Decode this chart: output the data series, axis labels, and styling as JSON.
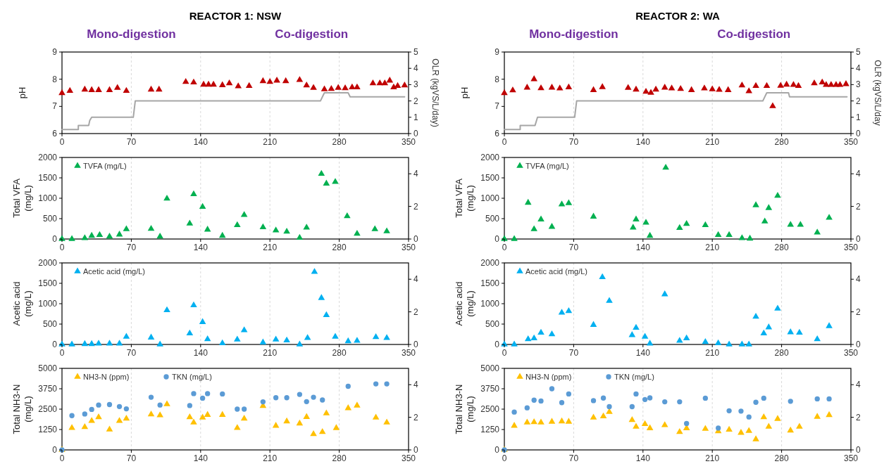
{
  "chart_data": [
    {
      "type": "scatter",
      "title": "REACTOR 1: NSW",
      "annotations": [
        "Mono-digestion",
        "Co-digestion"
      ],
      "ylabel": "pH",
      "y2label": "OLR (kgVS/L/day)",
      "xlim": [
        0,
        350
      ],
      "xticks": [
        0,
        70,
        140,
        210,
        280,
        350
      ],
      "ylim": [
        6,
        9
      ],
      "yticks": [
        6,
        7,
        8,
        9
      ],
      "y2lim": [
        0,
        5
      ],
      "y2ticks": [
        0,
        1,
        2,
        3,
        4,
        5
      ],
      "grid": "x",
      "series": [
        {
          "marker": "triangle",
          "color": "#c00000",
          "x": [
            0,
            8,
            23,
            30,
            37,
            48,
            56,
            65,
            90,
            98,
            125,
            133,
            143,
            148,
            153,
            162,
            169,
            178,
            189,
            203,
            210,
            217,
            226,
            240,
            247,
            254,
            265,
            272,
            279,
            286,
            293,
            298,
            314,
            321,
            326,
            331,
            335,
            339,
            346
          ],
          "values": [
            7.49,
            7.57,
            7.62,
            7.6,
            7.6,
            7.6,
            7.68,
            7.57,
            7.62,
            7.62,
            7.9,
            7.88,
            7.8,
            7.8,
            7.8,
            7.78,
            7.85,
            7.74,
            7.75,
            7.93,
            7.9,
            7.95,
            7.93,
            7.97,
            7.77,
            7.68,
            7.63,
            7.64,
            7.68,
            7.67,
            7.7,
            7.7,
            7.85,
            7.85,
            7.85,
            7.95,
            7.7,
            7.75,
            7.77
          ]
        },
        {
          "type": "line",
          "axis": "y2",
          "color": "#a6a6a6",
          "x": [
            0,
            16.5,
            16.5,
            27,
            28,
            30,
            72,
            74,
            261,
            265,
            289,
            291,
            346
          ],
          "values": [
            0.25,
            0.25,
            0.5,
            0.5,
            0.8,
            1,
            1,
            2,
            2,
            2.5,
            2.5,
            2.25,
            2.25
          ]
        }
      ]
    },
    {
      "type": "scatter",
      "ylabel": "Total VFA (mg/L)",
      "xlim": [
        0,
        350
      ],
      "xticks": [
        0,
        70,
        140,
        210,
        280,
        350
      ],
      "ylim": [
        0,
        2000
      ],
      "yticks": [
        0,
        500,
        1000,
        1500,
        2000
      ],
      "y2lim": [
        0,
        5
      ],
      "y2ticks": [
        0,
        2,
        4
      ],
      "grid": "x",
      "legend": "top left",
      "series": [
        {
          "name": "TVFA (mg/L)",
          "marker": "triangle",
          "color": "#00b050",
          "x": [
            0,
            10,
            23,
            30,
            38,
            48,
            58,
            65,
            90,
            99,
            106,
            129,
            133,
            142,
            147,
            162,
            177,
            184,
            203,
            216,
            227,
            240,
            247,
            262,
            267,
            276,
            288,
            298,
            316,
            328
          ],
          "values": [
            0,
            0,
            20,
            80,
            100,
            60,
            110,
            240,
            250,
            60,
            990,
            380,
            1100,
            790,
            230,
            80,
            340,
            590,
            290,
            210,
            180,
            30,
            280,
            1600,
            1360,
            1400,
            560,
            130,
            240,
            190
          ]
        }
      ]
    },
    {
      "type": "scatter",
      "ylabel": "Acetic acid (mg/L)",
      "xlim": [
        0,
        350
      ],
      "xticks": [
        0,
        70,
        140,
        210,
        280,
        350
      ],
      "ylim": [
        0,
        2000
      ],
      "yticks": [
        0,
        500,
        1000,
        1500,
        2000
      ],
      "y2lim": [
        0,
        5
      ],
      "y2ticks": [
        0,
        2,
        4
      ],
      "grid": "x",
      "legend": "top left",
      "series": [
        {
          "name": "Acetic acid (mg/L)",
          "marker": "triangle",
          "color": "#00b0f0",
          "x": [
            0,
            10,
            23,
            30,
            37,
            48,
            58,
            65,
            90,
            99,
            106,
            129,
            133,
            142,
            147,
            162,
            177,
            184,
            203,
            216,
            227,
            240,
            248,
            255,
            262,
            267,
            276,
            289,
            298,
            317,
            328
          ],
          "values": [
            0,
            0,
            10,
            10,
            20,
            20,
            20,
            190,
            170,
            0,
            840,
            270,
            960,
            550,
            130,
            30,
            120,
            350,
            50,
            120,
            100,
            0,
            160,
            1780,
            1140,
            720,
            190,
            80,
            90,
            180,
            160
          ]
        }
      ]
    },
    {
      "type": "scatter",
      "ylabel": "Total NH3-N (mg/L)",
      "xlim": [
        0,
        350
      ],
      "xticks": [
        0,
        70,
        140,
        210,
        280,
        350
      ],
      "ylim": [
        0,
        5000
      ],
      "yticks": [
        0,
        1250,
        2500,
        3750,
        5000
      ],
      "y2lim": [
        0,
        5
      ],
      "y2ticks": [
        0,
        2,
        4
      ],
      "grid": "x",
      "legend": "top left",
      "series": [
        {
          "name": "NH3-N (ppm)",
          "marker": "triangle",
          "color": "#ffc000",
          "x": [
            0,
            10,
            23,
            30,
            37,
            48,
            58,
            65,
            90,
            99,
            106,
            129,
            133,
            142,
            147,
            162,
            177,
            184,
            203,
            216,
            227,
            240,
            247,
            254,
            263,
            267,
            277,
            289,
            298,
            317,
            328
          ],
          "values": [
            0,
            1350,
            1400,
            1780,
            2000,
            1250,
            1780,
            1920,
            2180,
            2120,
            2800,
            2000,
            1680,
            1980,
            2150,
            2150,
            1350,
            1920,
            2700,
            1480,
            1750,
            1620,
            2020,
            970,
            1100,
            2240,
            1340,
            2560,
            2720,
            1980,
            1680
          ]
        },
        {
          "name": "TKN (mg/L)",
          "marker": "circle",
          "color": "#5b9bd5",
          "x": [
            0,
            10,
            23,
            30,
            37,
            48,
            58,
            65,
            90,
            99,
            129,
            133,
            142,
            147,
            162,
            177,
            184,
            203,
            216,
            227,
            240,
            247,
            254,
            263,
            289,
            317,
            328
          ],
          "values": [
            0,
            2100,
            2200,
            2480,
            2750,
            2780,
            2660,
            2520,
            3230,
            2750,
            2720,
            3450,
            3170,
            3450,
            3430,
            2500,
            2500,
            2950,
            3200,
            3200,
            3400,
            2960,
            3230,
            3060,
            3900,
            4050,
            4050
          ]
        }
      ]
    },
    {
      "type": "scatter",
      "title": "REACTOR 2: WA",
      "annotations": [
        "Mono-digestion",
        "Co-digestion"
      ],
      "ylabel": "pH",
      "y2label": "OLR (kgVS/L/day",
      "xlim": [
        0,
        350
      ],
      "xticks": [
        0,
        70,
        140,
        210,
        280,
        350
      ],
      "ylim": [
        6,
        9
      ],
      "yticks": [
        6,
        7,
        8,
        9
      ],
      "y2lim": [
        0,
        5
      ],
      "y2ticks": [
        0,
        1,
        2,
        3,
        4,
        5
      ],
      "grid": "x",
      "series": [
        {
          "marker": "triangle",
          "color": "#c00000",
          "x": [
            0,
            8.5,
            23,
            30,
            37,
            48,
            56,
            65,
            90,
            99,
            125,
            133,
            143,
            148,
            153,
            162,
            169,
            178,
            189,
            202,
            210,
            217,
            226,
            240,
            247,
            254,
            265,
            271,
            279,
            285,
            292,
            297,
            313,
            321,
            325,
            330,
            335,
            339,
            345
          ],
          "values": [
            7.49,
            7.59,
            7.69,
            8,
            7.67,
            7.69,
            7.66,
            7.7,
            7.6,
            7.71,
            7.68,
            7.62,
            7.54,
            7.5,
            7.62,
            7.69,
            7.66,
            7.64,
            7.6,
            7.66,
            7.63,
            7.61,
            7.6,
            7.77,
            7.56,
            7.75,
            7.75,
            7.01,
            7.76,
            7.8,
            7.79,
            7.75,
            7.85,
            7.88,
            7.79,
            7.79,
            7.79,
            7.79,
            7.82
          ]
        },
        {
          "type": "line",
          "axis": "y2",
          "color": "#a6a6a6",
          "x": [
            0,
            16,
            16,
            31,
            33.5,
            71,
            73,
            261,
            265,
            287,
            288,
            346
          ],
          "values": [
            0.25,
            0.25,
            0.5,
            0.5,
            1,
            1,
            2,
            2,
            2.5,
            2.5,
            2.25,
            2.25
          ]
        }
      ]
    },
    {
      "type": "scatter",
      "ylabel": "Total VFA (mg/L)",
      "xlim": [
        0,
        350
      ],
      "xticks": [
        0,
        70,
        140,
        210,
        280,
        350
      ],
      "ylim": [
        0,
        2000
      ],
      "yticks": [
        0,
        500,
        1000,
        1500,
        2000
      ],
      "y2lim": [
        0,
        5
      ],
      "y2ticks": [
        0,
        2,
        4
      ],
      "grid": "x",
      "legend": "top left",
      "series": [
        {
          "name": "TVFA (mg/L)",
          "marker": "triangle",
          "color": "#00b050",
          "x": [
            0,
            10,
            24,
            30,
            37,
            48,
            58,
            65,
            90,
            130,
            133,
            143,
            147,
            163,
            177,
            184,
            203,
            216,
            227,
            240,
            248,
            254,
            263,
            267,
            276,
            289,
            299,
            316,
            328
          ],
          "values": [
            0,
            0,
            890,
            240,
            480,
            300,
            850,
            880,
            550,
            280,
            480,
            400,
            80,
            1750,
            270,
            370,
            340,
            100,
            100,
            20,
            10,
            830,
            430,
            760,
            1060,
            350,
            350,
            160,
            520
          ]
        }
      ]
    },
    {
      "type": "scatter",
      "ylabel": "Acetic acid (mg/L)",
      "xlim": [
        0,
        350
      ],
      "xticks": [
        0,
        70,
        140,
        210,
        280,
        350
      ],
      "ylim": [
        0,
        2000
      ],
      "yticks": [
        0,
        500,
        1000,
        1500,
        2000
      ],
      "y2lim": [
        0,
        5
      ],
      "y2ticks": [
        0,
        2,
        4
      ],
      "grid": "x",
      "legend": "top left",
      "series": [
        {
          "name": "Acetic acid (mg/L)",
          "marker": "triangle",
          "color": "#00b0f0",
          "x": [
            0,
            10,
            24,
            30,
            37,
            48,
            58,
            65,
            90,
            99,
            106,
            129,
            133,
            142,
            147,
            162,
            177,
            184,
            203,
            216,
            227,
            240,
            247,
            254,
            262,
            267,
            276,
            289,
            298,
            316,
            328
          ],
          "values": [
            0,
            0,
            130,
            150,
            290,
            250,
            780,
            820,
            480,
            1650,
            1070,
            230,
            410,
            190,
            20,
            1230,
            90,
            150,
            60,
            30,
            0,
            0,
            0,
            680,
            270,
            420,
            880,
            300,
            290,
            130,
            450
          ]
        }
      ]
    },
    {
      "type": "scatter",
      "ylabel": "Total NH3-N (mg/L)",
      "xlim": [
        0,
        350
      ],
      "xticks": [
        0,
        70,
        140,
        210,
        280,
        350
      ],
      "ylim": [
        0,
        5000
      ],
      "yticks": [
        0,
        1250,
        2500,
        3750,
        5000
      ],
      "y2lim": [
        0,
        5
      ],
      "y2ticks": [
        0,
        2,
        4
      ],
      "grid": "x",
      "legend": "top left",
      "series": [
        {
          "name": "NH3-N (ppm)",
          "marker": "triangle",
          "color": "#ffc000",
          "x": [
            0,
            10,
            23,
            30,
            37,
            48,
            58,
            65,
            90,
            100,
            106,
            129,
            133,
            142,
            147,
            162,
            177,
            184,
            203,
            216,
            227,
            239,
            247,
            254,
            262,
            267,
            276,
            289,
            298,
            316,
            328
          ],
          "values": [
            0,
            1480,
            1680,
            1700,
            1680,
            1730,
            1750,
            1730,
            1980,
            2060,
            2330,
            1830,
            1420,
            1580,
            1330,
            1520,
            1100,
            1330,
            1290,
            1140,
            1240,
            1050,
            1160,
            650,
            2000,
            1420,
            1900,
            1190,
            1420,
            2030,
            2140
          ]
        },
        {
          "name": "TKN (mg/L)",
          "marker": "circle",
          "color": "#5b9bd5",
          "x": [
            0,
            10,
            23,
            30,
            37,
            48,
            58,
            65,
            90,
            100,
            106,
            129,
            133,
            142,
            147,
            162,
            177,
            184,
            203,
            216,
            227,
            239,
            247,
            254,
            262,
            289,
            316,
            328
          ],
          "values": [
            0,
            2320,
            2580,
            3050,
            3000,
            3750,
            2900,
            3430,
            3020,
            3180,
            2650,
            2650,
            3430,
            3090,
            3190,
            2950,
            2950,
            1620,
            3170,
            1340,
            2400,
            2380,
            2020,
            2920,
            3170,
            2980,
            3130,
            3130
          ]
        }
      ]
    }
  ]
}
